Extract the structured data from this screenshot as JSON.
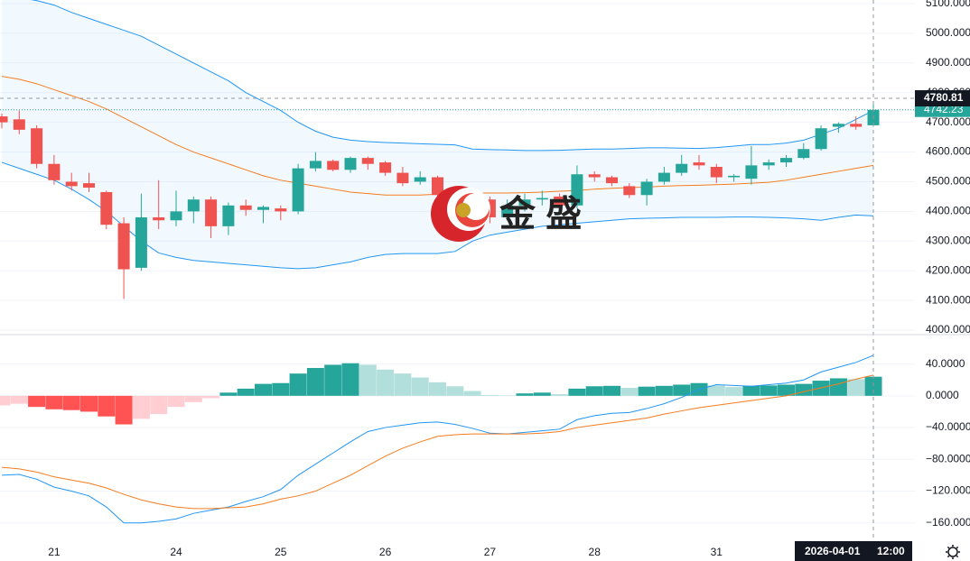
{
  "chart_data": [
    {
      "type": "candlestick",
      "categories": [
        null,
        null,
        null,
        "21",
        null,
        null,
        null,
        null,
        null,
        null,
        "24",
        null,
        null,
        null,
        null,
        null,
        "25",
        null,
        null,
        null,
        null,
        null,
        "26",
        null,
        null,
        null,
        null,
        null,
        "27",
        null,
        null,
        null,
        null,
        null,
        "28",
        null,
        null,
        null,
        null,
        null,
        null,
        "31",
        null,
        null,
        null,
        null,
        null,
        null,
        null,
        null,
        null
      ],
      "open": [
        4720,
        4710,
        4680,
        4560,
        4500,
        4495,
        4465,
        4360,
        4210,
        4380,
        4370,
        4400,
        4440,
        4350,
        4420,
        4405,
        4410,
        4400,
        4545,
        4570,
        4540,
        4580,
        4565,
        4530,
        4500,
        4515,
        4455,
        4420,
        4440,
        4380,
        4420,
        4440,
        4450,
        4420,
        4525,
        4515,
        4485,
        4455,
        4500,
        4530,
        4565,
        4550,
        4515,
        4510,
        4555,
        4565,
        4580,
        4610,
        4685,
        4695,
        4690
      ],
      "high": [
        4730,
        4740,
        4690,
        4590,
        4530,
        4530,
        4470,
        4380,
        4460,
        4505,
        4470,
        4450,
        4450,
        4430,
        4440,
        4420,
        4420,
        4560,
        4600,
        4575,
        4585,
        4585,
        4570,
        4550,
        4535,
        4520,
        4470,
        4460,
        4450,
        4440,
        4460,
        4470,
        4460,
        4555,
        4535,
        4520,
        4495,
        4510,
        4550,
        4590,
        4590,
        4560,
        4525,
        4620,
        4575,
        4590,
        4630,
        4690,
        4700,
        4720,
        4760
      ],
      "low": [
        4680,
        4660,
        4545,
        4490,
        4470,
        4465,
        4340,
        4105,
        4200,
        4340,
        4350,
        4360,
        4310,
        4320,
        4385,
        4360,
        4370,
        4390,
        4535,
        4535,
        4530,
        4540,
        4520,
        4485,
        4490,
        4440,
        4400,
        4400,
        4360,
        4370,
        4400,
        4420,
        4410,
        4410,
        4500,
        4485,
        4445,
        4420,
        4490,
        4520,
        4540,
        4495,
        4500,
        4490,
        4540,
        4550,
        4575,
        4605,
        4665,
        4675,
        4685
      ],
      "close": [
        4700,
        4675,
        4560,
        4505,
        4485,
        4480,
        4355,
        4205,
        4380,
        4370,
        4400,
        4440,
        4350,
        4420,
        4405,
        4415,
        4400,
        4545,
        4570,
        4540,
        4580,
        4560,
        4530,
        4495,
        4515,
        4455,
        4420,
        4440,
        4380,
        4420,
        4440,
        4445,
        4420,
        4525,
        4515,
        4495,
        4455,
        4500,
        4530,
        4560,
        4555,
        4515,
        4520,
        4555,
        4565,
        4580,
        4610,
        4680,
        4695,
        4685,
        4742.23
      ],
      "upper_band": [
        5125,
        5120,
        5110,
        5095,
        5070,
        5050,
        5030,
        5010,
        4990,
        4960,
        4930,
        4900,
        4870,
        4840,
        4800,
        4770,
        4740,
        4700,
        4670,
        4650,
        4640,
        4635,
        4632,
        4630,
        4628,
        4626,
        4624,
        4610,
        4608,
        4607,
        4605,
        4605,
        4606,
        4608,
        4610,
        4610,
        4612,
        4614,
        4614,
        4613,
        4612,
        4615,
        4620,
        4625,
        4625,
        4630,
        4640,
        4660,
        4680,
        4710,
        4740
      ],
      "middle_band": [
        4855,
        4845,
        4830,
        4810,
        4790,
        4770,
        4745,
        4715,
        4685,
        4655,
        4625,
        4600,
        4580,
        4560,
        4540,
        4520,
        4505,
        4495,
        4485,
        4475,
        4465,
        4460,
        4455,
        4455,
        4455,
        4458,
        4460,
        4462,
        4462,
        4462,
        4463,
        4465,
        4468,
        4470,
        4475,
        4478,
        4480,
        4482,
        4485,
        4487,
        4488,
        4490,
        4492,
        4495,
        4498,
        4505,
        4515,
        4525,
        4535,
        4545,
        4555
      ],
      "lower_band": [
        4565,
        4545,
        4525,
        4505,
        4475,
        4440,
        4400,
        4350,
        4300,
        4260,
        4245,
        4235,
        4230,
        4225,
        4220,
        4215,
        4210,
        4207,
        4210,
        4220,
        4230,
        4245,
        4255,
        4258,
        4258,
        4258,
        4265,
        4300,
        4320,
        4330,
        4340,
        4350,
        4355,
        4360,
        4365,
        4370,
        4375,
        4377,
        4378,
        4380,
        4380,
        4380,
        4381,
        4381,
        4380,
        4378,
        4375,
        4370,
        4380,
        4388,
        4385
      ],
      "up_color": "#26a69a",
      "down_color": "#ef5350",
      "band_color": "#2196f3",
      "middle_color": "#f57c1f",
      "band_fill": "rgba(33,150,243,0.06)",
      "last_price": 4742.23,
      "ylim": [
        3988,
        5112
      ],
      "yticks": [
        {
          "value": 4000,
          "label": "4000.000"
        },
        {
          "value": 4100,
          "label": "4100.000"
        },
        {
          "value": 4200,
          "label": "4200.000"
        },
        {
          "value": 4300,
          "label": "4300.000"
        },
        {
          "value": 4400,
          "label": "4400.000"
        },
        {
          "value": 4500,
          "label": "4500.000"
        },
        {
          "value": 4600,
          "label": "4600.000"
        },
        {
          "value": 4700,
          "label": "4700.000"
        },
        {
          "value": 4800,
          "label": "4800.000"
        },
        {
          "value": 4900,
          "label": "4900.000"
        },
        {
          "value": 5000,
          "label": "5000.000"
        },
        {
          "value": 5100,
          "label": "5100.000"
        }
      ],
      "grid": true
    },
    {
      "type": "macd",
      "histogram": [
        -12,
        -10,
        -14,
        -17,
        -18,
        -20,
        -26,
        -36,
        -29,
        -23,
        -14,
        -8,
        -3,
        4,
        9,
        15,
        16,
        28,
        35,
        39,
        41,
        39,
        33,
        28,
        23,
        17,
        12,
        6,
        1,
        0.5,
        3,
        4,
        2,
        9,
        12,
        12.5,
        10,
        11.5,
        12.5,
        14,
        16,
        13,
        11,
        12.5,
        13,
        14,
        15,
        19,
        22,
        21,
        24
      ],
      "macd": [
        -100,
        -99,
        -105,
        -115,
        -120,
        -126,
        -140,
        -160,
        -160,
        -158,
        -155,
        -148,
        -144,
        -140,
        -133,
        -127,
        -118,
        -100,
        -86,
        -72,
        -58,
        -45,
        -40,
        -37,
        -34,
        -33,
        -36,
        -41,
        -47,
        -48,
        -46,
        -44,
        -42,
        -30,
        -25,
        -22,
        -21,
        -16,
        -10,
        -2,
        8,
        14,
        13,
        12,
        14,
        16,
        20,
        30,
        36,
        42,
        51
      ],
      "signal": [
        -90,
        -92,
        -96,
        -102,
        -106,
        -110,
        -116,
        -124,
        -131,
        -136,
        -140,
        -142,
        -142,
        -141,
        -140,
        -136,
        -130,
        -126,
        -120,
        -110,
        -100,
        -88,
        -76,
        -66,
        -58,
        -51,
        -49,
        -48,
        -48,
        -48,
        -48,
        -47,
        -45,
        -40,
        -37,
        -34,
        -31,
        -28,
        -23,
        -19,
        -15,
        -12,
        -9,
        -6,
        -3,
        0,
        5,
        10,
        15,
        21,
        26
      ],
      "macd_color": "#2196f3",
      "signal_color": "#f57c1f",
      "hist_colors": {
        "up_strong": "#26a69a",
        "up_weak": "#b2dfdb",
        "down_strong": "#ff5252",
        "down_weak": "#ffcdd2"
      },
      "ylim": [
        -180.7,
        77
      ],
      "yticks": [
        {
          "value": 40,
          "label": "40.0000"
        },
        {
          "value": 0,
          "label": "0.0000"
        },
        {
          "value": -40,
          "label": "−40.0000"
        },
        {
          "value": -80,
          "label": "−80.0000"
        },
        {
          "value": -120,
          "label": "−120.0000"
        },
        {
          "value": -160,
          "label": "−160.0000"
        }
      ],
      "grid": true
    }
  ],
  "crosshair": {
    "date": "2026-04-01",
    "time": "12:00",
    "price": 4780.81
  },
  "watermark": "金 盛"
}
